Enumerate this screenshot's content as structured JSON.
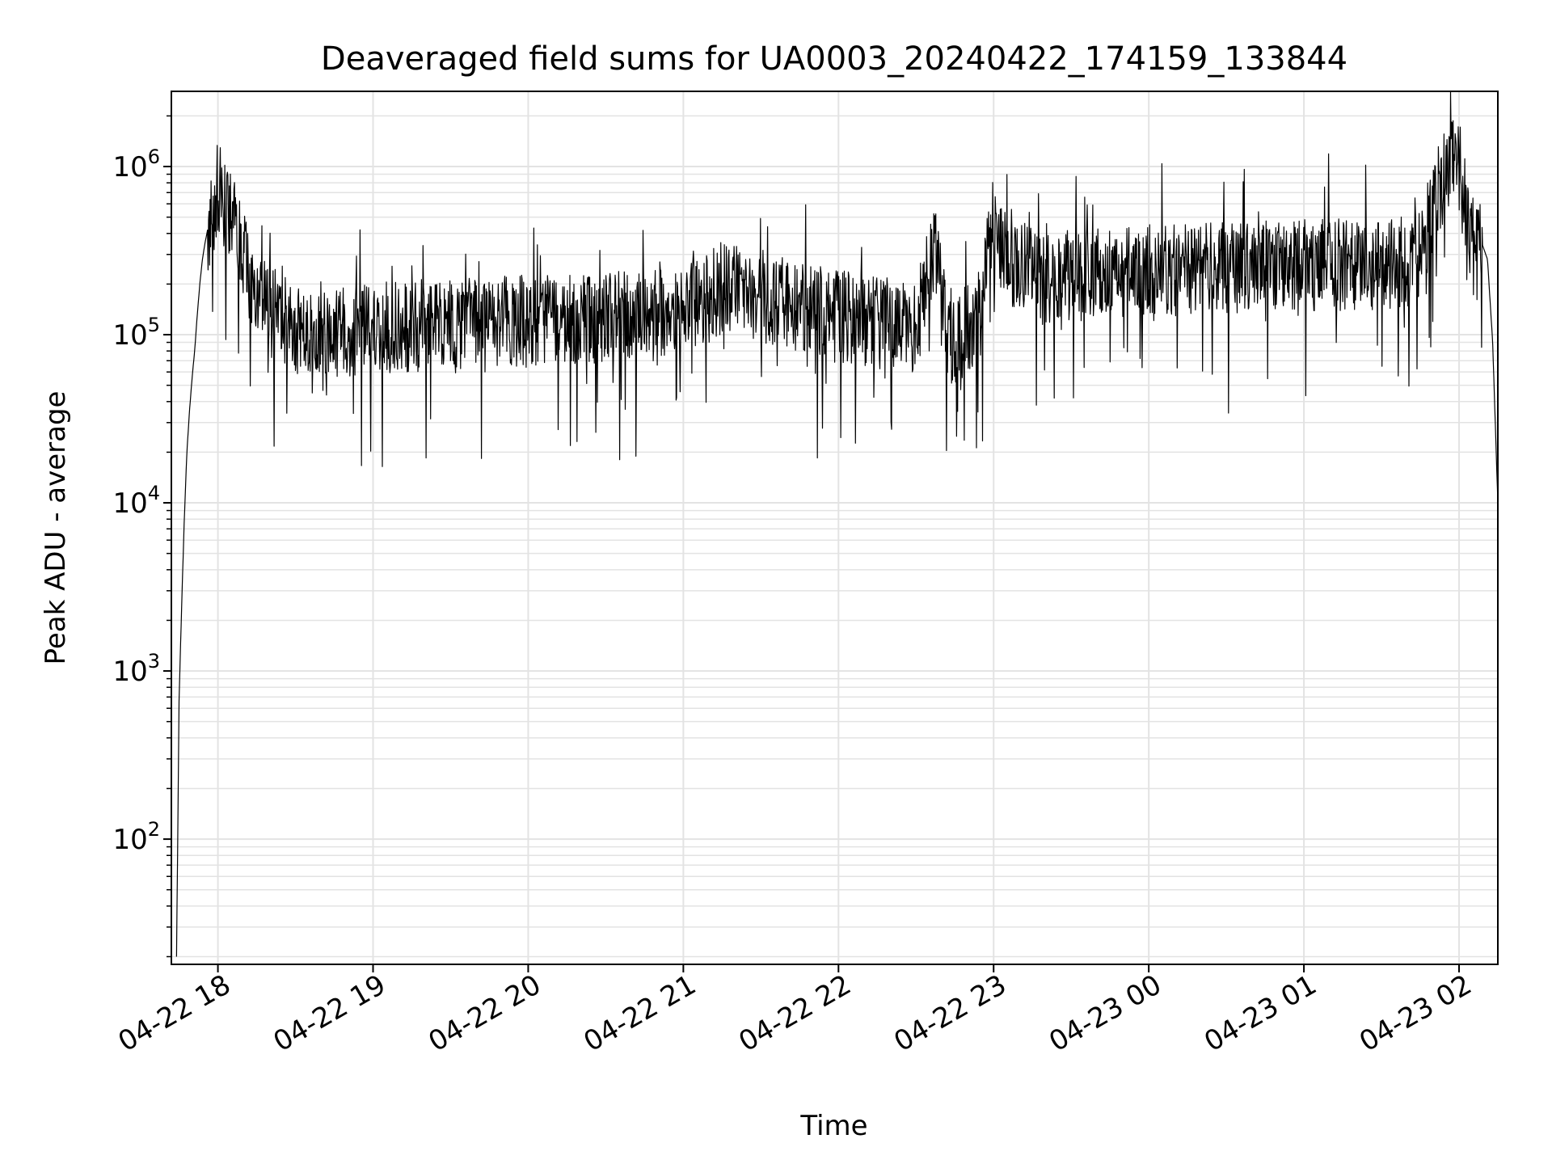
{
  "chart_data": {
    "type": "line",
    "title": "Deaveraged field sums for UA0003_20240422_174159_133844",
    "xlabel": "Time",
    "ylabel": "Peak ADU - average",
    "yscale": "log",
    "ylim": [
      18,
      2800000
    ],
    "xlim": [
      "2024-04-22 17:42",
      "2024-04-23 02:15"
    ],
    "grid": "on (major and minor)",
    "line_color": "#000000",
    "x_ticks": [
      {
        "t": "2024-04-22 18:00",
        "label": "04-22 18"
      },
      {
        "t": "2024-04-22 19:00",
        "label": "04-22 19"
      },
      {
        "t": "2024-04-22 20:00",
        "label": "04-22 20"
      },
      {
        "t": "2024-04-22 21:00",
        "label": "04-22 21"
      },
      {
        "t": "2024-04-22 22:00",
        "label": "04-22 22"
      },
      {
        "t": "2024-04-22 23:00",
        "label": "04-22 23"
      },
      {
        "t": "2024-04-23 00:00",
        "label": "04-23 00"
      },
      {
        "t": "2024-04-23 01:00",
        "label": "04-23 01"
      },
      {
        "t": "2024-04-23 02:00",
        "label": "04-23 02"
      }
    ],
    "y_ticks": [
      {
        "value": 100,
        "base": "10",
        "exp": "2"
      },
      {
        "value": 1000,
        "base": "10",
        "exp": "3"
      },
      {
        "value": 10000,
        "base": "10",
        "exp": "4"
      },
      {
        "value": 100000,
        "base": "10",
        "exp": "5"
      },
      {
        "value": 1000000,
        "base": "10",
        "exp": "6"
      }
    ],
    "series": [
      {
        "points": [
          [
            "2024-04-22 17:44",
            20
          ],
          [
            "2024-04-22 17:45",
            700
          ],
          [
            "2024-04-22 17:46",
            2500
          ],
          [
            "2024-04-22 17:47",
            8000
          ],
          [
            "2024-04-22 17:48",
            20000
          ],
          [
            "2024-04-22 17:49",
            35000
          ],
          [
            "2024-04-22 17:50",
            55000
          ],
          [
            "2024-04-22 17:51",
            80000
          ],
          [
            "2024-04-22 17:52",
            130000
          ],
          [
            "2024-04-22 17:53",
            200000
          ],
          [
            "2024-04-22 17:54",
            280000
          ],
          [
            "2024-04-22 17:55",
            350000
          ],
          [
            "2024-04-22 17:56",
            420000
          ],
          [
            "2024-04-22 17:58",
            550000
          ],
          [
            "2024-04-22 18:00",
            750000
          ],
          [
            "2024-04-22 18:02",
            650000
          ],
          [
            "2024-04-22 18:04",
            520000
          ],
          [
            "2024-04-22 18:06",
            450000
          ],
          [
            "2024-04-22 18:08",
            380000
          ],
          [
            "2024-04-22 18:10",
            300000
          ],
          [
            "2024-04-22 18:13",
            200000
          ],
          [
            "2024-04-22 18:16",
            160000
          ],
          [
            "2024-04-22 18:20",
            140000
          ],
          [
            "2024-04-22 18:25",
            120000
          ],
          [
            "2024-04-22 18:30",
            110000
          ],
          [
            "2024-04-22 18:45",
            105000
          ],
          [
            "2024-04-22 19:00",
            110000
          ],
          [
            "2024-04-22 19:30",
            115000
          ],
          [
            "2024-04-22 20:00",
            120000
          ],
          [
            "2024-04-22 20:30",
            125000
          ],
          [
            "2024-04-22 21:00",
            135000
          ],
          [
            "2024-04-22 21:15",
            190000
          ],
          [
            "2024-04-22 21:30",
            170000
          ],
          [
            "2024-04-22 21:50",
            140000
          ],
          [
            "2024-04-22 22:10",
            120000
          ],
          [
            "2024-04-22 22:30",
            110000
          ],
          [
            "2024-04-22 22:37",
            330000
          ],
          [
            "2024-04-22 22:43",
            90000
          ],
          [
            "2024-04-22 22:55",
            130000
          ],
          [
            "2024-04-22 22:58",
            500000
          ],
          [
            "2024-04-22 23:05",
            280000
          ],
          [
            "2024-04-22 23:20",
            220000
          ],
          [
            "2024-04-22 23:45",
            230000
          ],
          [
            "2024-04-23 00:00",
            240000
          ],
          [
            "2024-04-23 00:30",
            250000
          ],
          [
            "2024-04-23 01:00",
            260000
          ],
          [
            "2024-04-23 01:30",
            260000
          ],
          [
            "2024-04-23 01:45",
            280000
          ],
          [
            "2024-04-23 01:50",
            600000
          ],
          [
            "2024-04-23 01:55",
            900000
          ],
          [
            "2024-04-23 01:58",
            1100000
          ],
          [
            "2024-04-23 02:00",
            950000
          ],
          [
            "2024-04-23 02:04",
            420000
          ],
          [
            "2024-04-23 02:08",
            380000
          ],
          [
            "2024-04-23 02:11",
            280000
          ],
          [
            "2024-04-23 02:13",
            90000
          ],
          [
            "2024-04-23 02:15",
            10000
          ]
        ]
      }
    ]
  }
}
